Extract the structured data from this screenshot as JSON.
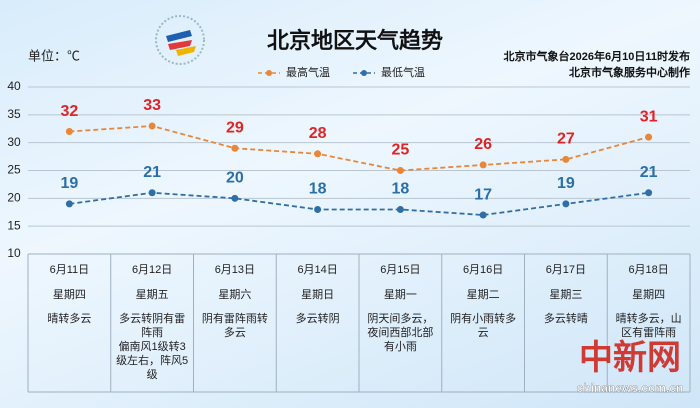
{
  "chart_data": {
    "type": "line",
    "title": "北京地区天气趋势",
    "unit_label": "单位：℃",
    "source": [
      "北京市气象台2026年6月10日11时发布",
      "北京市气象服务中心制作"
    ],
    "categories": [
      "6月11日",
      "6月12日",
      "6月13日",
      "6月14日",
      "6月15日",
      "6月16日",
      "6月17日",
      "6月18日"
    ],
    "weekdays": [
      "星期四",
      "星期五",
      "星期六",
      "星期日",
      "星期一",
      "星期二",
      "星期三",
      "星期四"
    ],
    "weather": [
      [
        "晴转多云"
      ],
      [
        "多云转阴有雷阵雨",
        "偏南风1级转3级左右，阵风5级"
      ],
      [
        "阴有雷阵雨转多云"
      ],
      [
        "多云转阴"
      ],
      [
        "阴天间多云，夜间西部北部有小雨"
      ],
      [
        "阴有小雨转多云"
      ],
      [
        "多云转晴"
      ],
      [
        "晴转多云，山区有雷阵雨"
      ]
    ],
    "series": [
      {
        "name": "最高气温",
        "color": "#e8873a",
        "label_color": "#e02424",
        "values": [
          32,
          33,
          29,
          28,
          25,
          26,
          27,
          31
        ]
      },
      {
        "name": "最低气温",
        "color": "#2f6fa6",
        "label_color": "#2a6fa8",
        "values": [
          19,
          21,
          20,
          18,
          18,
          17,
          19,
          21
        ]
      }
    ],
    "ylim": [
      10,
      40
    ],
    "yticks": [
      10,
      15,
      20,
      25,
      30,
      35,
      40
    ],
    "grid": true,
    "legend": "top",
    "watermark": [
      "中新网",
      "chinanews.com.cn"
    ]
  }
}
